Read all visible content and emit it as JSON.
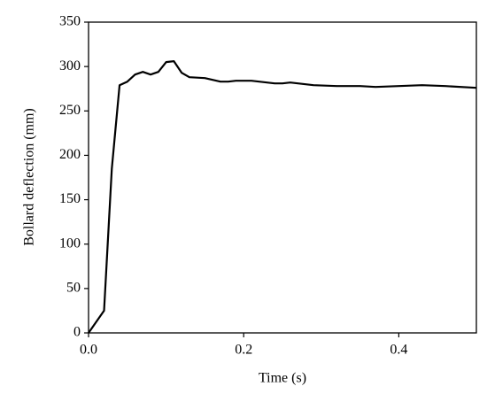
{
  "chart_data": {
    "type": "line",
    "x_label": "Time (s)",
    "y_label": "Bollard deflection (mm)",
    "xlim": [
      0,
      0.5
    ],
    "ylim": [
      0,
      350
    ],
    "xticks": [
      {
        "value": 0,
        "label": "0.0"
      },
      0.2,
      0.4
    ],
    "yticks": [
      0,
      50,
      100,
      150,
      200,
      250,
      300,
      350
    ],
    "series": [
      {
        "color": "#000000",
        "x": [
          0,
          0.02,
          0.03,
          0.04,
          0.05,
          0.06,
          0.07,
          0.08,
          0.09,
          0.1,
          0.11,
          0.12,
          0.13,
          0.15,
          0.17,
          0.18,
          0.19,
          0.21,
          0.23,
          0.24,
          0.25,
          0.26,
          0.27,
          0.29,
          0.32,
          0.35,
          0.37,
          0.4,
          0.43,
          0.46,
          0.5
        ],
        "values": [
          0,
          25,
          185,
          279,
          283,
          291,
          294,
          291,
          294,
          305,
          306,
          293,
          288,
          287,
          283,
          283,
          284,
          284,
          282,
          281,
          281,
          282,
          281,
          279,
          278,
          278,
          277,
          278,
          279,
          278,
          276
        ]
      }
    ]
  }
}
